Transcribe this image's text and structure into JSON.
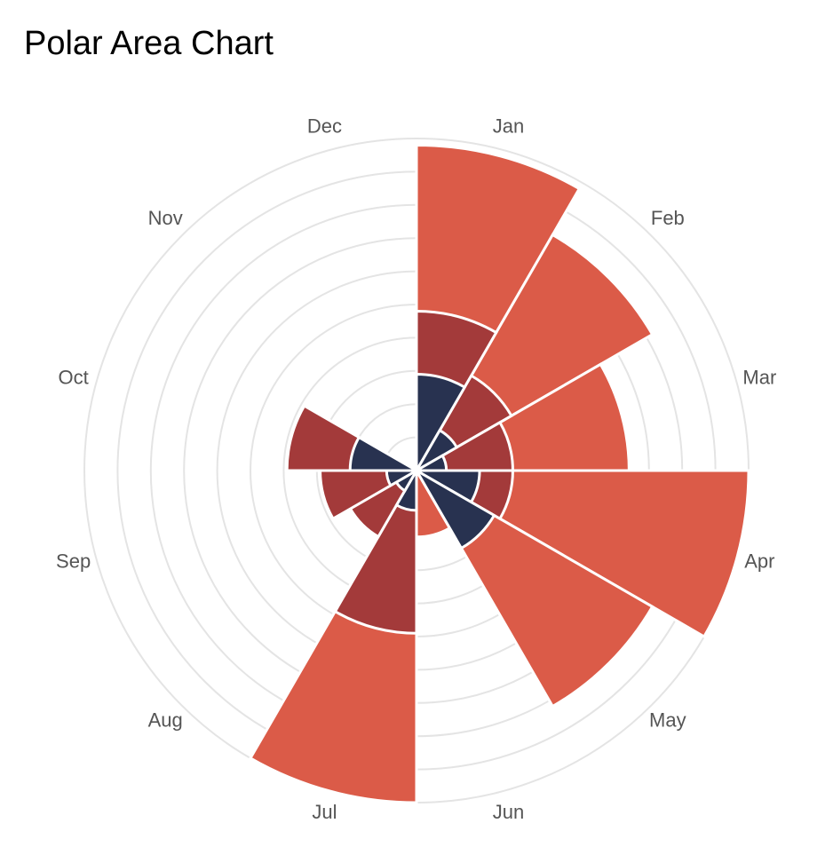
{
  "chart_data": {
    "type": "polar-area",
    "title": "Polar Area Chart",
    "categories": [
      "Jan",
      "Feb",
      "Mar",
      "Apr",
      "May",
      "Jun",
      "Jul",
      "Aug",
      "Sep",
      "Oct",
      "Nov",
      "Dec"
    ],
    "series": [
      {
        "color": "#db5b48",
        "values": [
          9.8,
          8.2,
          6.4,
          10.0,
          8.2,
          2.0,
          10.0,
          0,
          2.0,
          0,
          0,
          0
        ]
      },
      {
        "color": "#a33a3a",
        "values": [
          4.8,
          3.3,
          2.9,
          2.9,
          2.6,
          0,
          4.9,
          2.3,
          2.9,
          3.9,
          0,
          0
        ]
      },
      {
        "color": "#283250",
        "values": [
          2.9,
          1.4,
          0.9,
          1.9,
          2.7,
          0,
          1.2,
          0.7,
          0.9,
          2.0,
          0,
          0
        ]
      }
    ],
    "rlim": [
      0,
      10
    ],
    "grid_rings": 10,
    "grid": true,
    "legend": "none"
  }
}
